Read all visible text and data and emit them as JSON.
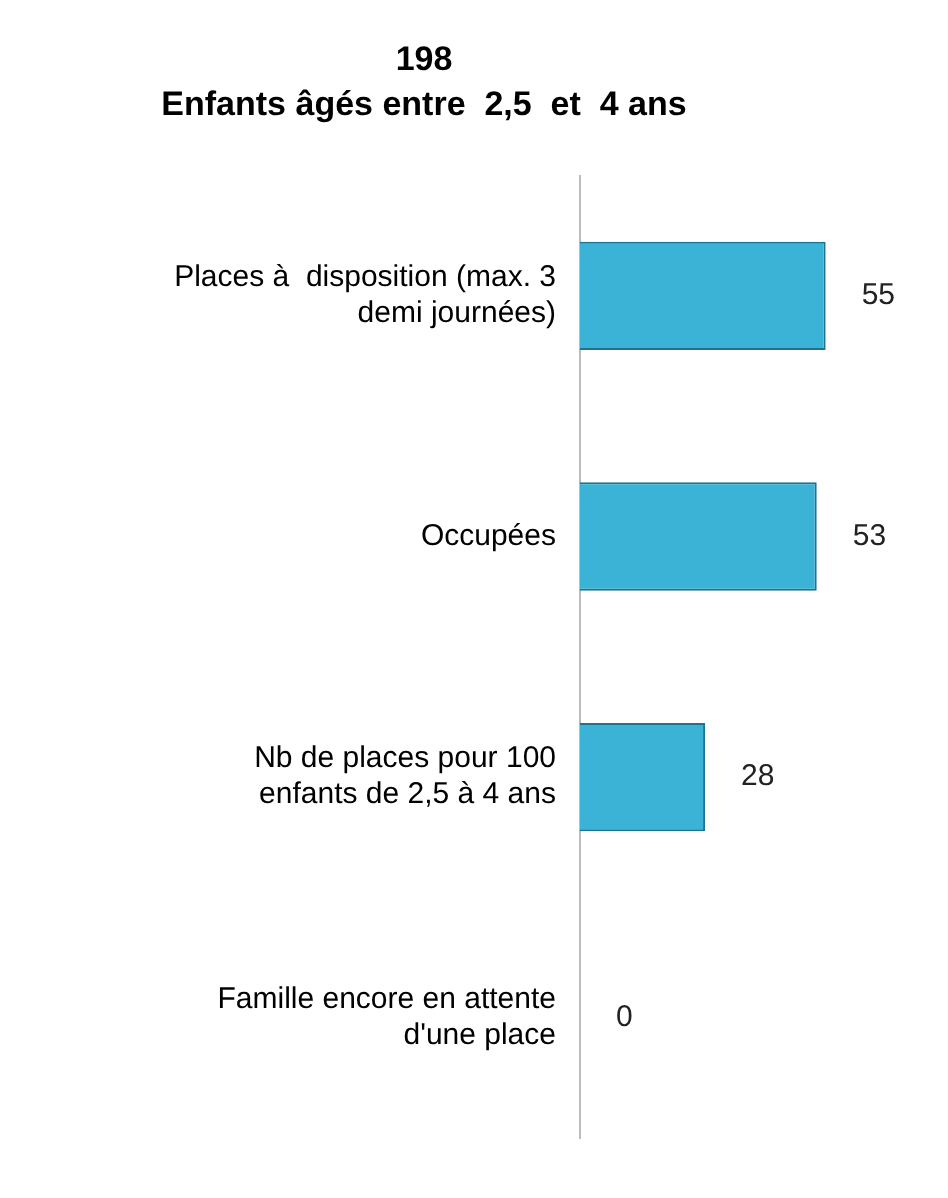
{
  "chart_data": {
    "type": "bar",
    "orientation": "horizontal",
    "title": "198",
    "subtitle": "Enfants âgés entre  2,5  et  4 ans",
    "categories": [
      "Places à  disposition (max. 3 demi journées)",
      "Occupées",
      "Nb de places pour 100 enfants de 2,5 à 4 ans",
      "Famille encore en attente d'une place"
    ],
    "values": [
      55,
      53,
      28,
      0
    ],
    "color": "#3bb3d6",
    "data_labels": true,
    "grid": false,
    "legend": false
  }
}
